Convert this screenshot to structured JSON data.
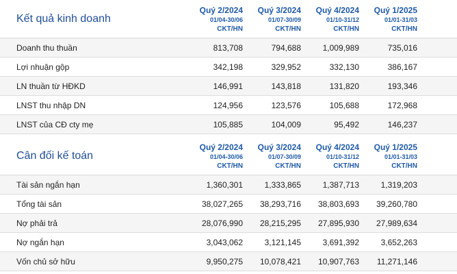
{
  "income": {
    "title": "Kết quả kinh doanh",
    "columns": [
      {
        "quarter": "Quý 2/2024",
        "range": "01/04-30/06",
        "unit": "CKT/HN"
      },
      {
        "quarter": "Quý 3/2024",
        "range": "01/07-30/09",
        "unit": "CKT/HN"
      },
      {
        "quarter": "Quý 4/2024",
        "range": "01/10-31/12",
        "unit": "CKT/HN"
      },
      {
        "quarter": "Quý 1/2025",
        "range": "01/01-31/03",
        "unit": "CKT/HN"
      }
    ],
    "rows": [
      {
        "label": "Doanh thu thuần",
        "values": [
          "813,708",
          "794,688",
          "1,009,989",
          "735,016"
        ]
      },
      {
        "label": "Lợi nhuận gộp",
        "values": [
          "342,198",
          "329,952",
          "332,130",
          "386,167"
        ]
      },
      {
        "label": "LN thuần từ HĐKD",
        "values": [
          "146,991",
          "143,818",
          "131,820",
          "193,346"
        ]
      },
      {
        "label": "LNST thu nhập DN",
        "values": [
          "124,956",
          "123,576",
          "105,688",
          "172,968"
        ]
      },
      {
        "label": "LNST của CĐ cty mẹ",
        "values": [
          "105,885",
          "104,009",
          "95,492",
          "146,237"
        ]
      }
    ]
  },
  "balance": {
    "title": "Cân đối kế toán",
    "columns": [
      {
        "quarter": "Quý 2/2024",
        "range": "01/04-30/06",
        "unit": "CKT/HN"
      },
      {
        "quarter": "Quý 3/2024",
        "range": "01/07-30/09",
        "unit": "CKT/HN"
      },
      {
        "quarter": "Quý 4/2024",
        "range": "01/10-31/12",
        "unit": "CKT/HN"
      },
      {
        "quarter": "Quý 1/2025",
        "range": "01/01-31/03",
        "unit": "CKT/HN"
      }
    ],
    "rows": [
      {
        "label": "Tài sản ngắn hạn",
        "values": [
          "1,360,301",
          "1,333,865",
          "1,387,713",
          "1,319,203"
        ]
      },
      {
        "label": "Tổng tài sản",
        "values": [
          "38,027,265",
          "38,293,716",
          "38,803,693",
          "39,260,780"
        ]
      },
      {
        "label": "Nợ phải trả",
        "values": [
          "28,076,990",
          "28,215,295",
          "27,895,930",
          "27,989,634"
        ]
      },
      {
        "label": "Nợ ngắn hạn",
        "values": [
          "3,043,062",
          "3,121,145",
          "3,691,392",
          "3,652,263"
        ]
      },
      {
        "label": "Vốn chủ sở hữu",
        "values": [
          "9,950,275",
          "10,078,421",
          "10,907,763",
          "11,271,146"
        ]
      }
    ]
  }
}
